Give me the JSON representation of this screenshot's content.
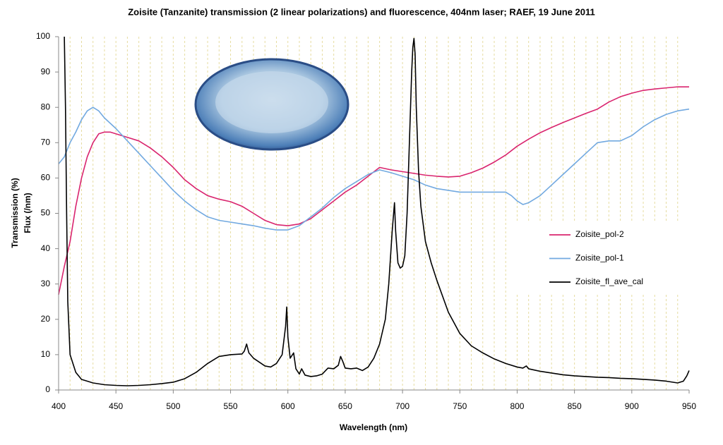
{
  "chart_data": {
    "type": "line",
    "title": "Zoisite (Tanzanite) transmission (2 linear polarizations) and fluorescence, 404nm laser; RAEF, 19 June 2011",
    "x_label": "Wavelength (nm)",
    "y_label": [
      "Transmission (%)",
      "Flux (/nm)"
    ],
    "xlim": [
      400,
      950
    ],
    "ylim": [
      0,
      100
    ],
    "xticks": [
      400,
      450,
      500,
      550,
      600,
      650,
      700,
      750,
      800,
      850,
      900,
      950
    ],
    "yticks": [
      0,
      10,
      20,
      30,
      40,
      50,
      60,
      70,
      80,
      90,
      100
    ],
    "x_grid_interval": 10,
    "grid_color": "#e6dca0",
    "legend": "right",
    "series": [
      {
        "name": "Zoisite_pol-2",
        "color": "#d9246e",
        "x": [
          400,
          405,
          410,
          415,
          420,
          425,
          430,
          435,
          440,
          445,
          450,
          460,
          470,
          480,
          490,
          500,
          510,
          520,
          530,
          540,
          550,
          560,
          570,
          580,
          590,
          600,
          610,
          620,
          630,
          640,
          650,
          660,
          670,
          680,
          690,
          700,
          710,
          720,
          730,
          740,
          750,
          760,
          770,
          780,
          790,
          800,
          810,
          820,
          830,
          840,
          850,
          860,
          870,
          880,
          890,
          900,
          910,
          920,
          930,
          940,
          950
        ],
        "values": [
          27,
          35,
          42,
          52,
          60,
          66,
          70,
          72.5,
          73,
          73,
          72.5,
          71.5,
          70.5,
          68.5,
          66,
          63,
          59.5,
          57,
          55,
          54,
          53.3,
          52,
          50,
          48,
          46.8,
          46.5,
          47,
          48.5,
          51,
          53.5,
          56,
          58,
          60.5,
          63,
          62.3,
          61.8,
          61.3,
          60.8,
          60.5,
          60.3,
          60.5,
          61.5,
          62.8,
          64.5,
          66.5,
          69,
          71,
          72.8,
          74.3,
          75.7,
          77,
          78.3,
          79.5,
          81.5,
          83,
          84,
          84.8,
          85.2,
          85.5,
          85.8,
          85.8
        ]
      },
      {
        "name": "Zoisite_pol-1",
        "color": "#72a9e0",
        "x": [
          400,
          405,
          410,
          415,
          420,
          425,
          430,
          435,
          440,
          450,
          460,
          470,
          480,
          490,
          500,
          510,
          520,
          530,
          540,
          550,
          560,
          570,
          580,
          590,
          600,
          610,
          620,
          630,
          640,
          650,
          660,
          670,
          680,
          690,
          700,
          710,
          720,
          730,
          740,
          750,
          760,
          770,
          780,
          790,
          795,
          800,
          805,
          810,
          820,
          830,
          840,
          850,
          860,
          870,
          880,
          890,
          900,
          910,
          920,
          930,
          940,
          950
        ],
        "values": [
          64,
          66,
          70,
          73,
          76.5,
          79,
          80,
          79,
          77,
          74,
          70.5,
          67,
          63.5,
          60,
          56.5,
          53.5,
          51,
          49,
          48,
          47.5,
          47,
          46.5,
          45.8,
          45.3,
          45.3,
          46.5,
          49,
          51.5,
          54.5,
          57,
          59,
          61,
          62.3,
          61.5,
          60.5,
          59.5,
          58,
          57,
          56.5,
          56,
          56,
          56,
          56,
          56,
          55,
          53.5,
          52.5,
          53,
          55,
          58,
          61,
          64,
          67,
          70,
          70.5,
          70.5,
          72,
          74.5,
          76.5,
          78,
          79,
          79.5
        ]
      },
      {
        "name": "Zoisite_fl_ave_cal",
        "color": "#000000",
        "x": [
          405,
          406,
          407,
          408,
          410,
          415,
          420,
          430,
          440,
          450,
          460,
          470,
          480,
          490,
          500,
          510,
          520,
          530,
          540,
          550,
          560,
          562,
          564,
          566,
          570,
          580,
          585,
          590,
          595,
          598,
          599,
          600,
          602,
          605,
          607,
          610,
          612,
          615,
          620,
          625,
          630,
          635,
          640,
          644,
          646,
          648,
          650,
          655,
          660,
          665,
          670,
          675,
          680,
          685,
          688,
          691,
          693,
          694,
          696,
          698,
          700,
          702,
          704,
          706,
          708,
          709,
          710,
          711,
          712,
          714,
          716,
          720,
          725,
          730,
          740,
          750,
          760,
          770,
          780,
          790,
          800,
          805,
          808,
          810,
          820,
          830,
          840,
          850,
          860,
          870,
          880,
          890,
          900,
          910,
          920,
          930,
          940,
          945,
          948,
          950
        ],
        "values": [
          100,
          80,
          50,
          25,
          10,
          5,
          3,
          2,
          1.5,
          1.3,
          1.2,
          1.3,
          1.5,
          1.8,
          2.2,
          3.2,
          5,
          7.5,
          9.5,
          10,
          10.2,
          11,
          13,
          10.5,
          9,
          6.8,
          6.5,
          7.5,
          10,
          18,
          23.5,
          15,
          9,
          10.5,
          6,
          4.5,
          6,
          4.2,
          3.8,
          4,
          4.5,
          6.2,
          6,
          7,
          9.5,
          8,
          6.2,
          6,
          6.2,
          5.5,
          6.5,
          9,
          13,
          20,
          30,
          45,
          53,
          45,
          36,
          34.5,
          35,
          38,
          50,
          70,
          90,
          97,
          99.5,
          95,
          80,
          62,
          52,
          42,
          36,
          31,
          22,
          16,
          12.5,
          10.5,
          8.8,
          7.5,
          6.5,
          6.2,
          6.8,
          6,
          5.3,
          4.8,
          4.3,
          4,
          3.8,
          3.6,
          3.5,
          3.3,
          3.2,
          3,
          2.8,
          2.5,
          2,
          2.5,
          4,
          5.5
        ]
      }
    ]
  }
}
